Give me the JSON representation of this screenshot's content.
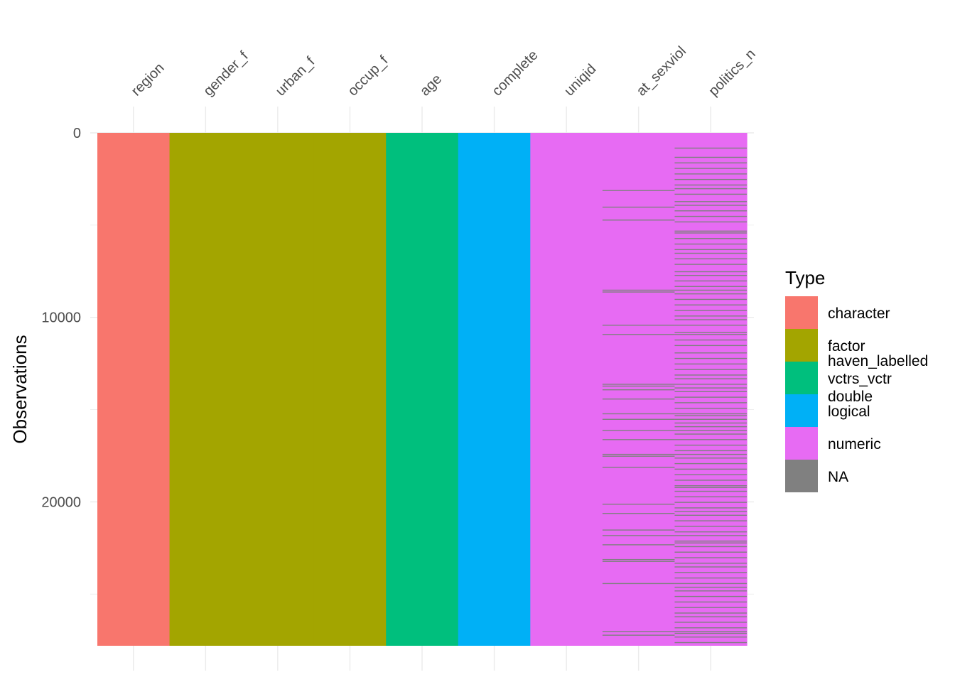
{
  "chart_data": {
    "type": "heatmap",
    "title": "",
    "xlabel": "",
    "ylabel": "Observations",
    "x_position": "top",
    "ylim": [
      0,
      27800
    ],
    "y_reversed": true,
    "y_ticks": [
      0,
      10000,
      20000
    ],
    "grid": true,
    "variables": [
      "region",
      "gender_f",
      "urban_f",
      "occup_f",
      "age",
      "complete",
      "uniqid",
      "at_sexviol",
      "politics_n"
    ],
    "variable_types": [
      "character",
      "factor",
      "factor",
      "factor",
      "haven_labelled\nvctrs_vctr\ndouble",
      "logical",
      "numeric",
      "numeric",
      "numeric"
    ],
    "n_observations": 27800,
    "missing_rows": {
      "at_sexviol": [
        3100,
        4000,
        4700,
        8500,
        8600,
        10400,
        10900,
        13600,
        13700,
        13900,
        14400,
        15200,
        15500,
        16100,
        16600,
        17400,
        17500,
        18100,
        20100,
        20600,
        21500,
        21800,
        22300,
        23100,
        23200,
        24400,
        27000,
        27200
      ],
      "politics_n": [
        800,
        1300,
        1600,
        1900,
        2200,
        2500,
        2800,
        3000,
        3300,
        3700,
        3900,
        4200,
        4500,
        4800,
        5300,
        5400,
        5700,
        6000,
        6300,
        6500,
        6800,
        7100,
        7500,
        7700,
        8000,
        8300,
        8500,
        8700,
        9000,
        9300,
        9600,
        9900,
        10100,
        10400,
        10800,
        10900,
        11200,
        11500,
        11900,
        12200,
        12500,
        12800,
        13100,
        13300,
        13600,
        13800,
        14000,
        14300,
        14600,
        14900,
        15200,
        15300,
        15500,
        15700,
        15900,
        16100,
        16300,
        16600,
        16900,
        17200,
        17400,
        17600,
        17900,
        18200,
        18500,
        18800,
        19100,
        19200,
        19400,
        19700,
        20000,
        20300,
        20500,
        20700,
        21000,
        21300,
        21600,
        21800,
        22100,
        22200,
        22400,
        22700,
        23000,
        23300,
        23500,
        23800,
        24100,
        24400,
        24600,
        24800,
        25100,
        25400,
        25700,
        26000,
        26200,
        26500,
        26800,
        27000,
        27100,
        27300,
        27600
      ]
    },
    "legend": {
      "title": "Type",
      "position": "right",
      "entries": [
        {
          "label": "character",
          "color": "#F8766D"
        },
        {
          "label": "factor",
          "color": "#A3A500"
        },
        {
          "label": "haven_labelled\nvctrs_vctr\ndouble",
          "color": "#00BF7D"
        },
        {
          "label": "logical",
          "color": "#00B0F6"
        },
        {
          "label": "numeric",
          "color": "#E76BF3"
        },
        {
          "label": "NA",
          "color": "#808080"
        }
      ]
    }
  }
}
